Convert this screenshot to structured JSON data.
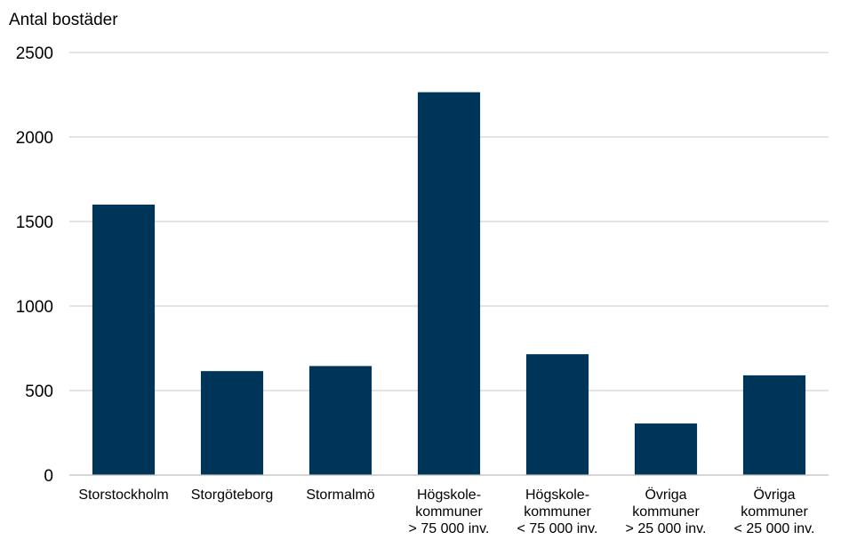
{
  "chart_data": {
    "type": "bar",
    "ylabel": "Antal bostäder",
    "xlabel": "",
    "ylim": [
      0,
      2500
    ],
    "yticks": [
      0,
      500,
      1000,
      1500,
      2000,
      2500
    ],
    "grid": true,
    "bar_color": "#00355a",
    "categories": [
      [
        "Storstockholm"
      ],
      [
        "Storgöteborg"
      ],
      [
        "Stormalmö"
      ],
      [
        "Högskole-",
        "kommuner",
        "> 75 000 inv."
      ],
      [
        "Högskole-",
        "kommuner",
        "< 75 000 inv."
      ],
      [
        "Övriga",
        "kommuner",
        "> 25 000 inv."
      ],
      [
        "Övriga",
        "kommuner",
        "< 25 000 inv."
      ]
    ],
    "values": [
      1600,
      615,
      645,
      2265,
      715,
      305,
      590
    ]
  }
}
